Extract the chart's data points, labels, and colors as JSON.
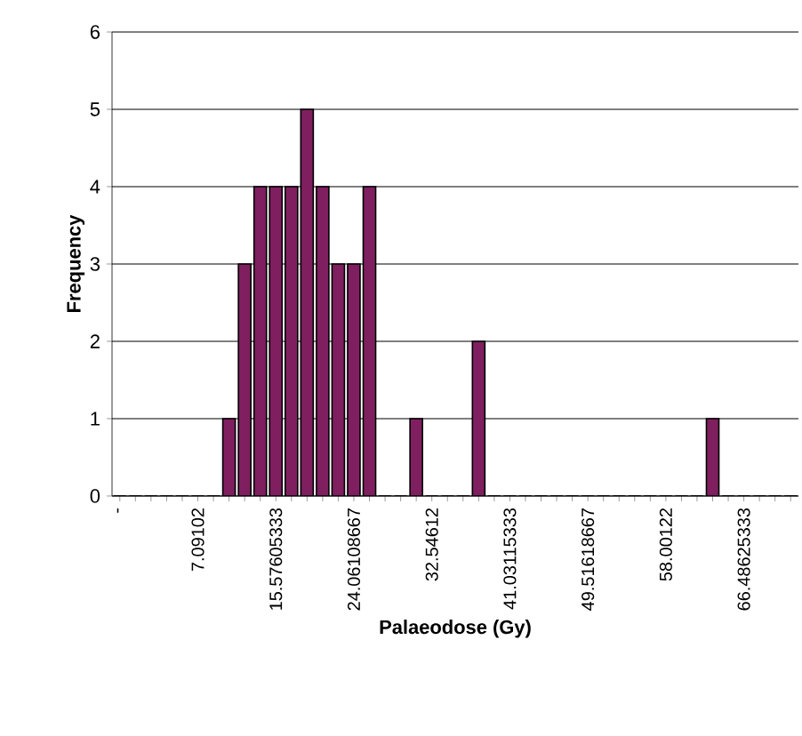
{
  "chart_data": {
    "type": "bar",
    "xlabel": "Palaeodose (Gy)",
    "ylabel": "Frequency",
    "categories": [
      "-",
      null,
      null,
      null,
      null,
      "7.09102",
      null,
      null,
      null,
      null,
      "15.57605333",
      null,
      null,
      null,
      null,
      "24.06108667",
      null,
      null,
      null,
      null,
      "32.54612",
      null,
      null,
      null,
      null,
      "41.03115333",
      null,
      null,
      null,
      null,
      "49.51618667",
      null,
      null,
      null,
      null,
      "58.00122",
      null,
      null,
      null,
      null,
      "66.48625333",
      null,
      null,
      null
    ],
    "values": [
      0,
      0,
      0,
      0,
      0,
      0,
      0,
      1,
      3,
      4,
      4,
      4,
      5,
      4,
      3,
      3,
      4,
      0,
      0,
      1,
      0,
      0,
      0,
      2,
      0,
      0,
      0,
      0,
      0,
      0,
      0,
      0,
      0,
      0,
      0,
      0,
      0,
      0,
      1,
      0,
      0,
      0,
      0,
      0
    ],
    "color": "#7f1f5f",
    "ylim": [
      0,
      6
    ],
    "yticks": [
      0,
      1,
      2,
      3,
      4,
      5,
      6
    ],
    "grid": "y"
  }
}
